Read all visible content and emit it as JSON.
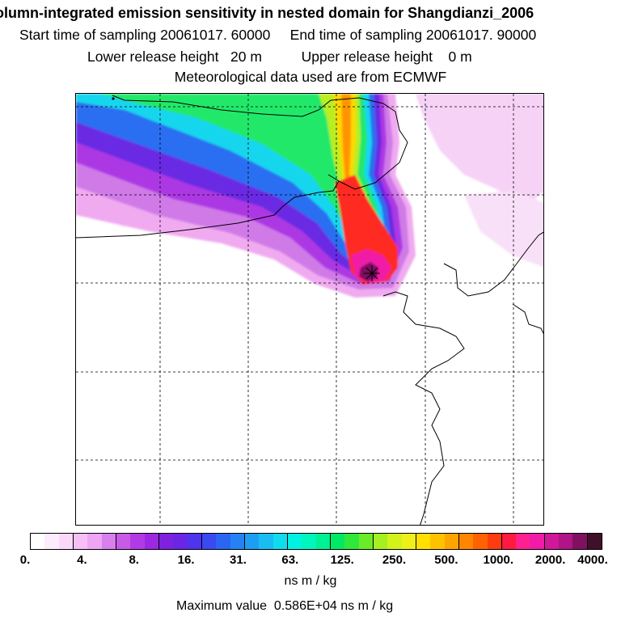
{
  "header": {
    "title": "olumn-integrated emission sensitivity in nested domain for Shangdianzi_2006",
    "sampling": "Start time of sampling 20061017. 60000     End time of sampling 20061017. 90000",
    "release": "Lower release height   20 m          Upper release height    0 m",
    "met": "Meteorological data used are from ECMWF"
  },
  "colorbar": {
    "colors": [
      "#ffffff",
      "#fcecfc",
      "#fad8fa",
      "#f6c0f6",
      "#f0a4f4",
      "#d880ee",
      "#c85ae8",
      "#b23ae6",
      "#9c28e2",
      "#7f22e0",
      "#6a26e4",
      "#4e34ec",
      "#3a4af0",
      "#2a66f2",
      "#2482f4",
      "#1e9ef2",
      "#18bef2",
      "#10dcee",
      "#00f2e0",
      "#00f6bc",
      "#00f094",
      "#00e864",
      "#30e83c",
      "#6aec28",
      "#a4f020",
      "#d2f21a",
      "#eef018",
      "#ffe000",
      "#ffc200",
      "#ffa400",
      "#ff8600",
      "#ff6200",
      "#ff3c10",
      "#ff1a40",
      "#ff2090",
      "#f01ca8",
      "#d01898",
      "#b01486",
      "#801060",
      "#40102a"
    ],
    "tick_labels": [
      "0.",
      "4.",
      "8.",
      "16.",
      "31.",
      "63.",
      "125.",
      "250.",
      "500.",
      "1000.",
      "2000.",
      "4000."
    ],
    "unit": "ns m / kg"
  },
  "footer": {
    "max_value": "Maximum value  0.586E+04 ns m / kg"
  },
  "map": {
    "release_site": "Shangdianzi"
  }
}
